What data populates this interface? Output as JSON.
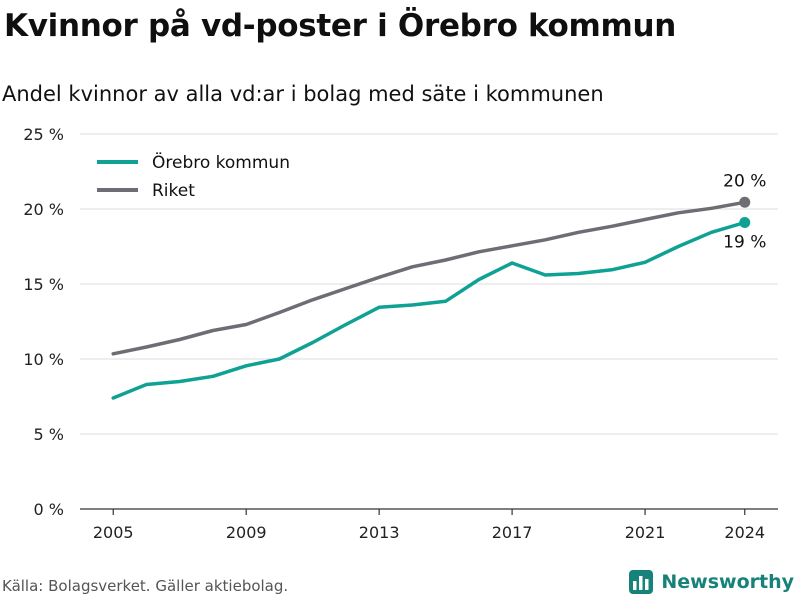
{
  "header": {
    "title": "Kvinnor på vd-poster i Örebro kommun",
    "subtitle": "Andel kvinnor av alla vd:ar i bolag med säte i kommunen"
  },
  "footer": {
    "source": "Källa: Bolagsverket. Gäller aktiebolag.",
    "brand": "Newsworthy",
    "brand_color": "#17827a",
    "brand_icon": "bar-chart-logo-icon"
  },
  "chart_data": {
    "type": "line",
    "title": "Kvinnor på vd-poster i Örebro kommun",
    "subtitle": "Andel kvinnor av alla vd:ar i bolag med säte i kommunen",
    "xlabel": "",
    "ylabel": "",
    "x": [
      2005,
      2006,
      2007,
      2008,
      2009,
      2010,
      2011,
      2012,
      2013,
      2014,
      2015,
      2016,
      2017,
      2018,
      2019,
      2020,
      2021,
      2022,
      2023,
      2024
    ],
    "x_ticks": [
      {
        "value": 2005,
        "label": "2005"
      },
      {
        "value": 2009,
        "label": "2009"
      },
      {
        "value": 2013,
        "label": "2013"
      },
      {
        "value": 2017,
        "label": "2017"
      },
      {
        "value": 2021,
        "label": "2021"
      },
      {
        "value": 2024,
        "label": "2024"
      }
    ],
    "xlim": [
      2004,
      2025
    ],
    "ylim": [
      0,
      25
    ],
    "y_ticks": [
      {
        "value": 0,
        "label": "0 %"
      },
      {
        "value": 5,
        "label": "5 %"
      },
      {
        "value": 10,
        "label": "10 %"
      },
      {
        "value": 15,
        "label": "15 %"
      },
      {
        "value": 20,
        "label": "20 %"
      },
      {
        "value": 25,
        "label": "25 %"
      }
    ],
    "grid": true,
    "legend_position": "top-left",
    "series": [
      {
        "name": "Örebro kommun",
        "color": "#10a195",
        "values": [
          7.4,
          8.3,
          8.5,
          8.85,
          9.55,
          10.0,
          11.1,
          12.3,
          13.45,
          13.6,
          13.85,
          15.3,
          16.4,
          15.6,
          15.7,
          15.95,
          16.45,
          17.5,
          18.45,
          19.1
        ],
        "end_label": "19 %"
      },
      {
        "name": "Riket",
        "color": "#6e6d74",
        "values": [
          10.35,
          10.8,
          11.3,
          11.9,
          12.3,
          13.1,
          13.95,
          14.7,
          15.45,
          16.15,
          16.6,
          17.15,
          17.55,
          17.95,
          18.45,
          18.85,
          19.3,
          19.75,
          20.05,
          20.45
        ],
        "end_label": "20 %"
      }
    ]
  }
}
